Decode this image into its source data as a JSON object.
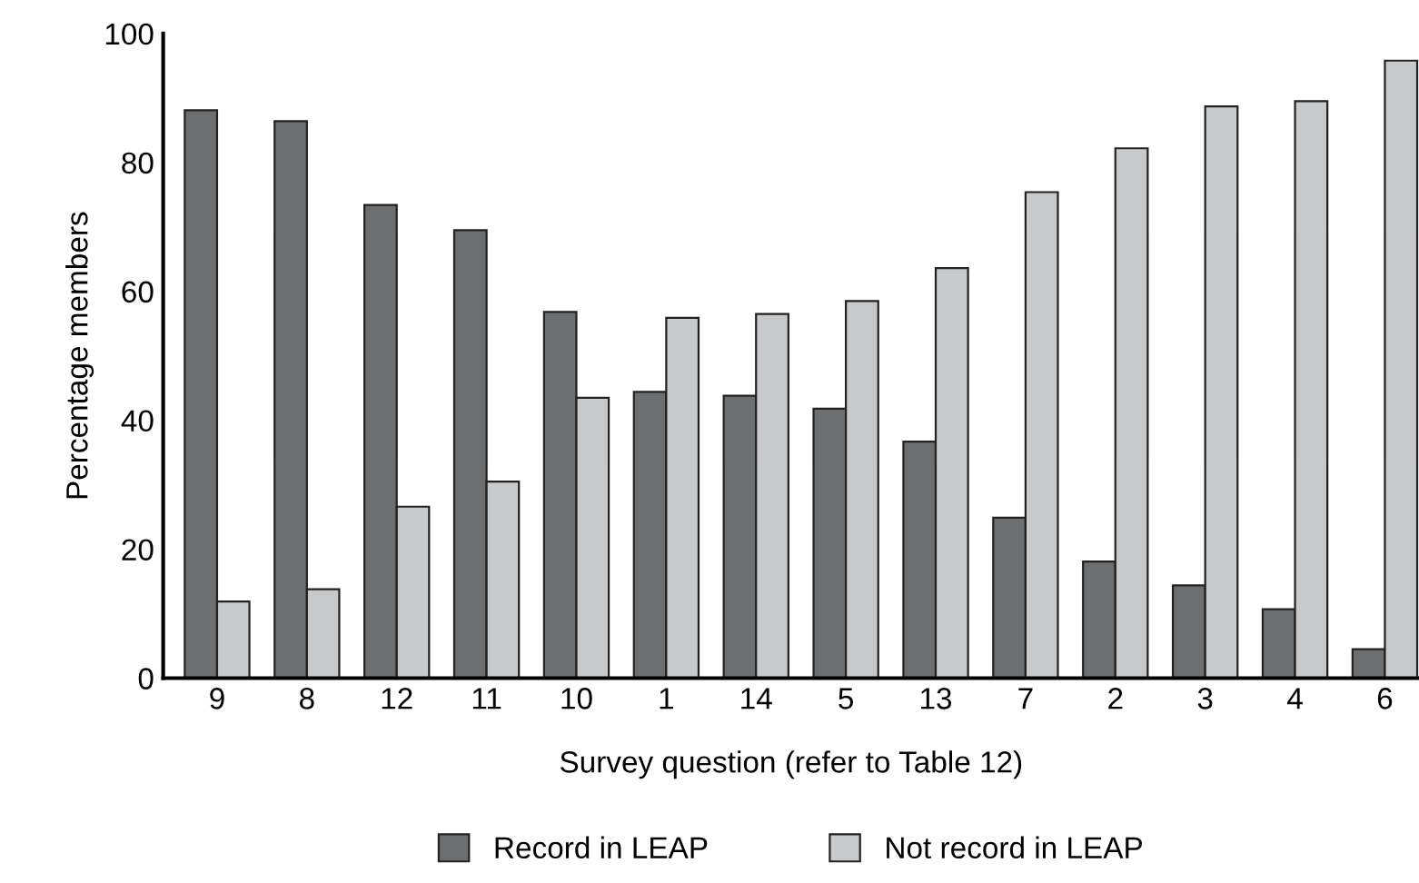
{
  "chart_data": {
    "type": "bar",
    "xlabel": "Survey question (refer to Table 12)",
    "ylabel": "Percentage members",
    "categories": [
      "9",
      "8",
      "12",
      "11",
      "10",
      "1",
      "14",
      "5",
      "13",
      "7",
      "2",
      "3",
      "4",
      "6"
    ],
    "series": [
      {
        "name": "Record in LEAP",
        "color": "#6d6e70",
        "values": [
          88.1,
          86.4,
          73.4,
          69.5,
          56.8,
          44.4,
          43.8,
          41.8,
          36.7,
          24.9,
          18.1,
          14.4,
          10.7,
          4.5
        ]
      },
      {
        "name": "Not record in LEAP",
        "color": "#c8c9cb",
        "values": [
          11.9,
          13.8,
          26.6,
          30.5,
          43.5,
          55.9,
          56.5,
          58.5,
          63.6,
          75.4,
          82.2,
          88.7,
          89.5,
          95.8
        ]
      }
    ],
    "ylim": [
      0,
      100
    ],
    "yticks": [
      0,
      20,
      40,
      60,
      80,
      100
    ],
    "grid": false,
    "legend": "bottom"
  }
}
